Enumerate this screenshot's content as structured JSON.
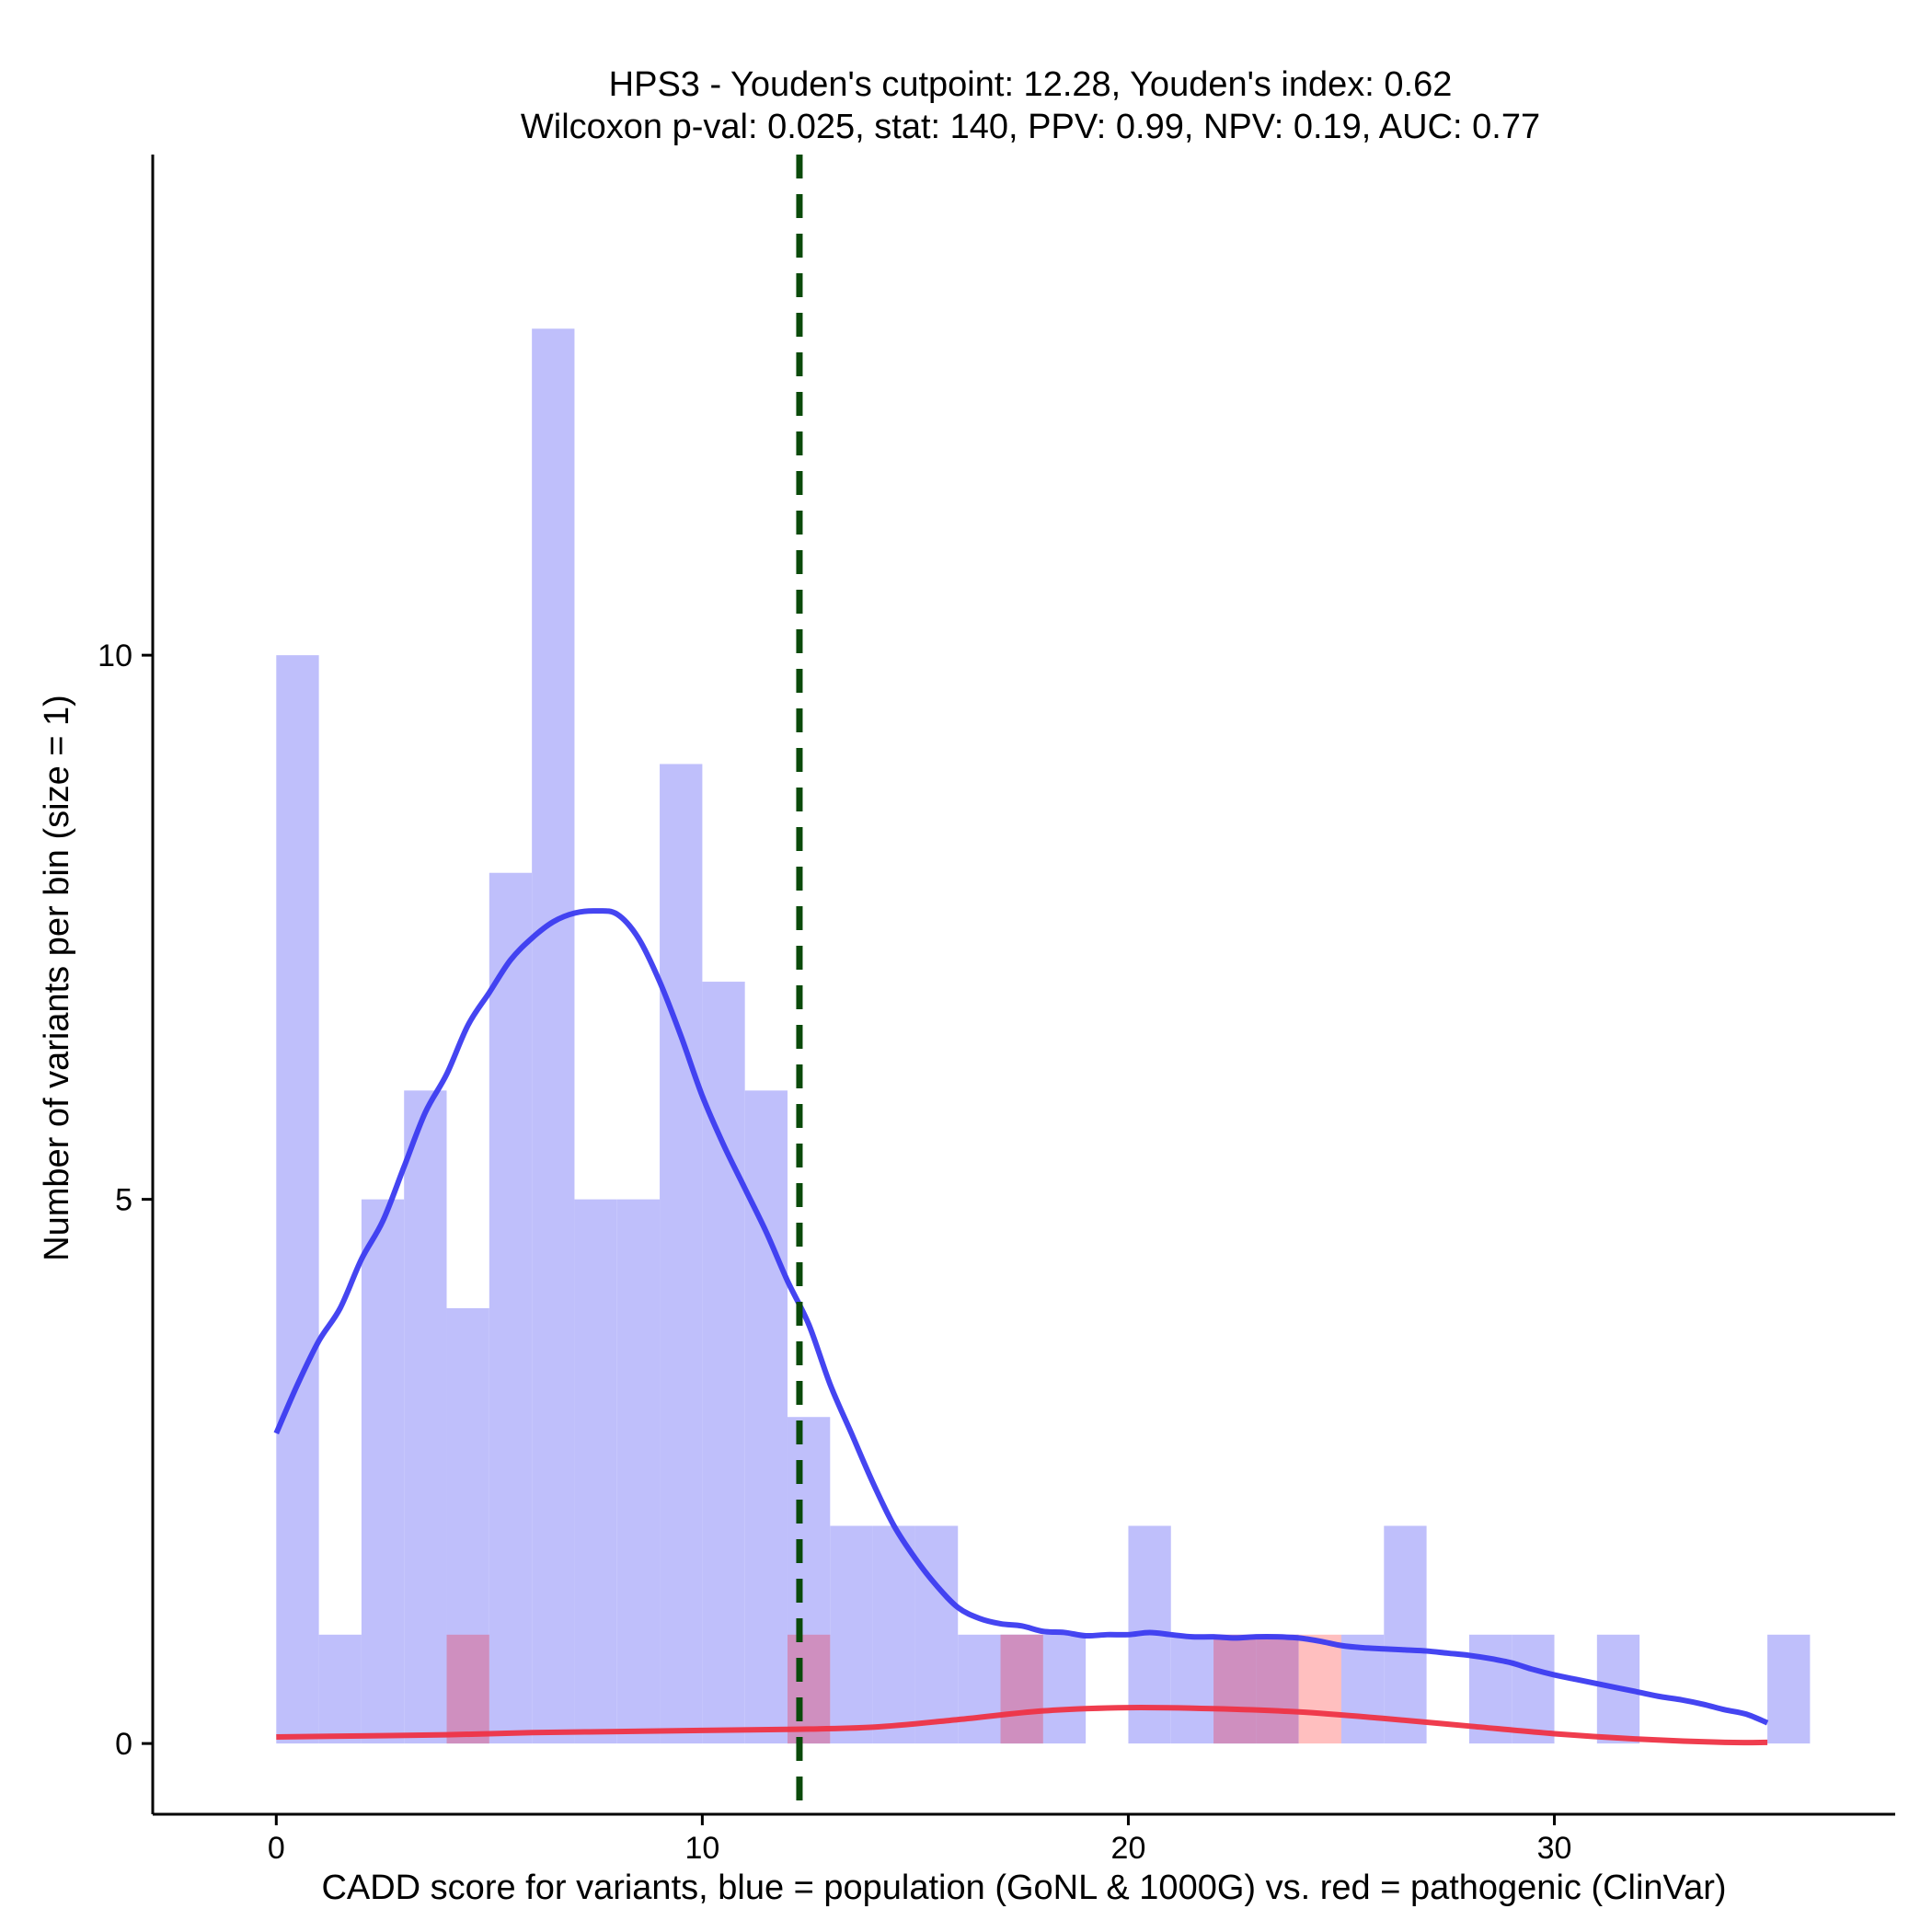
{
  "chart_data": {
    "type": "histogram",
    "title_line1": "HPS3 - Youden's cutpoint: 12.28, Youden's index: 0.62",
    "title_line2": "Wilcoxon p-val: 0.025, stat: 140, PPV: 0.99, NPV: 0.19, AUC: 0.77",
    "xlabel": "CADD score for variants, blue = population (GoNL & 1000G) vs. red = pathogenic (ClinVar)",
    "ylabel": "Number of variants per bin (size = 1)",
    "xlim": [
      -2.9,
      38
    ],
    "ylim": [
      -0.65,
      14.6
    ],
    "x_ticks": [
      0,
      10,
      20,
      30
    ],
    "y_ticks": [
      0,
      5,
      10
    ],
    "bin_width": 1,
    "cutpoint": 12.28,
    "colors": {
      "population_bar": "#bfbffb",
      "pathogenic_bar": "#ffbfbf",
      "overlap_bar": "#cf8fbf",
      "population_line": "#3b3bf0",
      "pathogenic_line": "#ee3344",
      "cutpoint_line": "#0a4a0a",
      "axis": "#000000"
    },
    "series": [
      {
        "name": "population",
        "bins": [
          {
            "x": 0,
            "count": 10
          },
          {
            "x": 1,
            "count": 1
          },
          {
            "x": 2,
            "count": 5
          },
          {
            "x": 3,
            "count": 6
          },
          {
            "x": 4,
            "count": 4
          },
          {
            "x": 5,
            "count": 8
          },
          {
            "x": 6,
            "count": 13
          },
          {
            "x": 7,
            "count": 5
          },
          {
            "x": 8,
            "count": 5
          },
          {
            "x": 9,
            "count": 9
          },
          {
            "x": 10,
            "count": 7
          },
          {
            "x": 11,
            "count": 6
          },
          {
            "x": 12,
            "count": 3
          },
          {
            "x": 13,
            "count": 2
          },
          {
            "x": 14,
            "count": 2
          },
          {
            "x": 15,
            "count": 2
          },
          {
            "x": 16,
            "count": 1
          },
          {
            "x": 17,
            "count": 1
          },
          {
            "x": 18,
            "count": 1
          },
          {
            "x": 20,
            "count": 2
          },
          {
            "x": 21,
            "count": 1
          },
          {
            "x": 22,
            "count": 1
          },
          {
            "x": 23,
            "count": 1
          },
          {
            "x": 25,
            "count": 1
          },
          {
            "x": 26,
            "count": 2
          },
          {
            "x": 28,
            "count": 1
          },
          {
            "x": 29,
            "count": 1
          },
          {
            "x": 31,
            "count": 1
          },
          {
            "x": 35,
            "count": 1
          }
        ],
        "density_curve": [
          [
            0,
            2.85
          ],
          [
            0.5,
            3.3
          ],
          [
            1,
            3.7
          ],
          [
            1.5,
            4.0
          ],
          [
            2,
            4.45
          ],
          [
            2.5,
            4.8
          ],
          [
            3,
            5.3
          ],
          [
            3.5,
            5.8
          ],
          [
            4,
            6.15
          ],
          [
            4.5,
            6.6
          ],
          [
            5,
            6.9
          ],
          [
            5.5,
            7.2
          ],
          [
            6,
            7.4
          ],
          [
            6.5,
            7.55
          ],
          [
            7,
            7.63
          ],
          [
            7.5,
            7.65
          ],
          [
            8,
            7.62
          ],
          [
            8.5,
            7.4
          ],
          [
            9,
            7.0
          ],
          [
            9.5,
            6.5
          ],
          [
            10,
            5.95
          ],
          [
            10.5,
            5.5
          ],
          [
            11,
            5.1
          ],
          [
            11.5,
            4.7
          ],
          [
            12,
            4.25
          ],
          [
            12.5,
            3.85
          ],
          [
            13,
            3.3
          ],
          [
            13.5,
            2.85
          ],
          [
            14,
            2.4
          ],
          [
            14.5,
            2.0
          ],
          [
            15,
            1.7
          ],
          [
            15.5,
            1.45
          ],
          [
            16,
            1.25
          ],
          [
            16.5,
            1.15
          ],
          [
            17,
            1.1
          ],
          [
            17.5,
            1.08
          ],
          [
            18,
            1.03
          ],
          [
            18.5,
            1.02
          ],
          [
            19,
            0.99
          ],
          [
            19.5,
            1.0
          ],
          [
            20,
            1.0
          ],
          [
            20.5,
            1.02
          ],
          [
            21,
            1.0
          ],
          [
            21.5,
            0.98
          ],
          [
            22,
            0.98
          ],
          [
            22.5,
            0.97
          ],
          [
            23,
            0.98
          ],
          [
            23.5,
            0.98
          ],
          [
            24,
            0.97
          ],
          [
            24.5,
            0.94
          ],
          [
            25,
            0.9
          ],
          [
            25.5,
            0.88
          ],
          [
            26,
            0.87
          ],
          [
            26.5,
            0.86
          ],
          [
            27,
            0.85
          ],
          [
            27.5,
            0.83
          ],
          [
            28,
            0.81
          ],
          [
            28.5,
            0.78
          ],
          [
            29,
            0.74
          ],
          [
            29.5,
            0.68
          ],
          [
            30,
            0.63
          ],
          [
            30.5,
            0.59
          ],
          [
            31,
            0.55
          ],
          [
            31.5,
            0.51
          ],
          [
            32,
            0.47
          ],
          [
            32.5,
            0.43
          ],
          [
            33,
            0.4
          ],
          [
            33.5,
            0.36
          ],
          [
            34,
            0.31
          ],
          [
            34.5,
            0.27
          ],
          [
            35,
            0.19
          ]
        ]
      },
      {
        "name": "pathogenic",
        "bins": [
          {
            "x": 4,
            "count": 1
          },
          {
            "x": 12,
            "count": 1
          },
          {
            "x": 17,
            "count": 1
          },
          {
            "x": 22,
            "count": 1
          },
          {
            "x": 23,
            "count": 1
          },
          {
            "x": 24,
            "count": 1
          }
        ],
        "density_curve": [
          [
            0,
            0.06
          ],
          [
            2,
            0.07
          ],
          [
            4,
            0.08
          ],
          [
            6,
            0.1
          ],
          [
            8,
            0.11
          ],
          [
            10,
            0.12
          ],
          [
            12,
            0.13
          ],
          [
            14,
            0.15
          ],
          [
            16,
            0.22
          ],
          [
            18,
            0.3
          ],
          [
            20,
            0.33
          ],
          [
            22,
            0.32
          ],
          [
            24,
            0.29
          ],
          [
            26,
            0.23
          ],
          [
            28,
            0.16
          ],
          [
            30,
            0.09
          ],
          [
            32,
            0.04
          ],
          [
            34,
            0.01
          ],
          [
            35,
            0.01
          ]
        ]
      }
    ]
  }
}
